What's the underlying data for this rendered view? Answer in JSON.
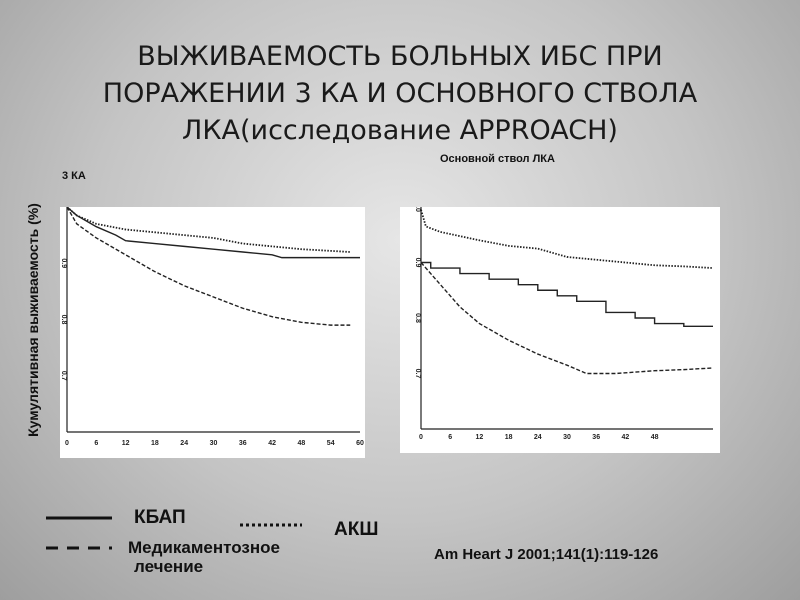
{
  "title": {
    "line1": "ВЫЖИВАЕМОСТЬ БОЛЬНЫХ ИБС ПРИ",
    "line2": "ПОРАЖЕНИИ 3 КА И ОСНОВНОГО СТВОЛА",
    "line3": "ЛКА(исследование APPROACH)"
  },
  "ylabel": "Кумулятивная выживаемость (%)",
  "legend": {
    "pci": "КБАП",
    "medical_line1": "Медикаментозное",
    "medical_line2": "лечение",
    "cabg": "АКШ"
  },
  "citation": "Am Heart J 2001;141(1):119-126",
  "colors": {
    "line": "#222222",
    "panel_bg": "#ffffff"
  },
  "chart_data": [
    {
      "type": "line",
      "title": "3 КА",
      "x_ticks": [
        "0",
        "6",
        "12",
        "18",
        "24",
        "30",
        "36",
        "42",
        "48",
        "54",
        "60"
      ],
      "y_ticks": [
        "0.9",
        "0.8",
        "0.7"
      ],
      "xlim": [
        0,
        60
      ],
      "ylim": [
        0.6,
        1.0
      ],
      "series": [
        {
          "name": "КБАП",
          "style": "solid",
          "x": [
            0,
            2,
            6,
            10,
            12,
            18,
            24,
            30,
            36,
            42,
            44,
            48,
            54,
            60
          ],
          "y": [
            1.0,
            0.985,
            0.965,
            0.95,
            0.94,
            0.935,
            0.93,
            0.925,
            0.92,
            0.915,
            0.91,
            0.91,
            0.91,
            0.91
          ]
        },
        {
          "name": "АКШ",
          "style": "dotted",
          "x": [
            0,
            2,
            6,
            12,
            18,
            24,
            30,
            36,
            42,
            48,
            54,
            58
          ],
          "y": [
            1.0,
            0.985,
            0.97,
            0.96,
            0.955,
            0.95,
            0.945,
            0.935,
            0.93,
            0.925,
            0.922,
            0.92
          ]
        },
        {
          "name": "Медикаментозное лечение",
          "style": "dashed",
          "x": [
            0,
            2,
            6,
            12,
            18,
            24,
            30,
            36,
            42,
            48,
            54,
            58
          ],
          "y": [
            1.0,
            0.97,
            0.945,
            0.915,
            0.885,
            0.86,
            0.84,
            0.82,
            0.805,
            0.795,
            0.79,
            0.79
          ]
        }
      ]
    },
    {
      "type": "line",
      "title": "Основной ствол ЛКА",
      "x_ticks": [
        "0",
        "6",
        "12",
        "18",
        "24",
        "30",
        "36",
        "42",
        "48"
      ],
      "y_ticks": [
        "1.0",
        "0.9",
        "0.8",
        "0.7"
      ],
      "xlim": [
        0,
        60
      ],
      "ylim": [
        0.6,
        1.0
      ],
      "series": [
        {
          "name": "КБАП",
          "style": "step",
          "x": [
            0,
            2,
            8,
            14,
            20,
            24,
            28,
            32,
            38,
            44,
            48,
            54,
            60
          ],
          "y": [
            0.9,
            0.89,
            0.88,
            0.87,
            0.86,
            0.85,
            0.84,
            0.83,
            0.81,
            0.8,
            0.79,
            0.785,
            0.785
          ]
        },
        {
          "name": "АКШ",
          "style": "dotted",
          "x": [
            0,
            1,
            4,
            12,
            18,
            24,
            30,
            36,
            42,
            48,
            54,
            60
          ],
          "y": [
            0.995,
            0.965,
            0.955,
            0.94,
            0.93,
            0.925,
            0.91,
            0.905,
            0.9,
            0.895,
            0.893,
            0.89
          ]
        },
        {
          "name": "Медикаментозное лечение",
          "style": "dashed",
          "x": [
            0,
            1,
            4,
            8,
            12,
            18,
            24,
            30,
            34,
            40,
            48,
            54,
            60
          ],
          "y": [
            0.9,
            0.89,
            0.86,
            0.82,
            0.79,
            0.76,
            0.735,
            0.715,
            0.7,
            0.7,
            0.705,
            0.707,
            0.71
          ]
        }
      ]
    }
  ]
}
